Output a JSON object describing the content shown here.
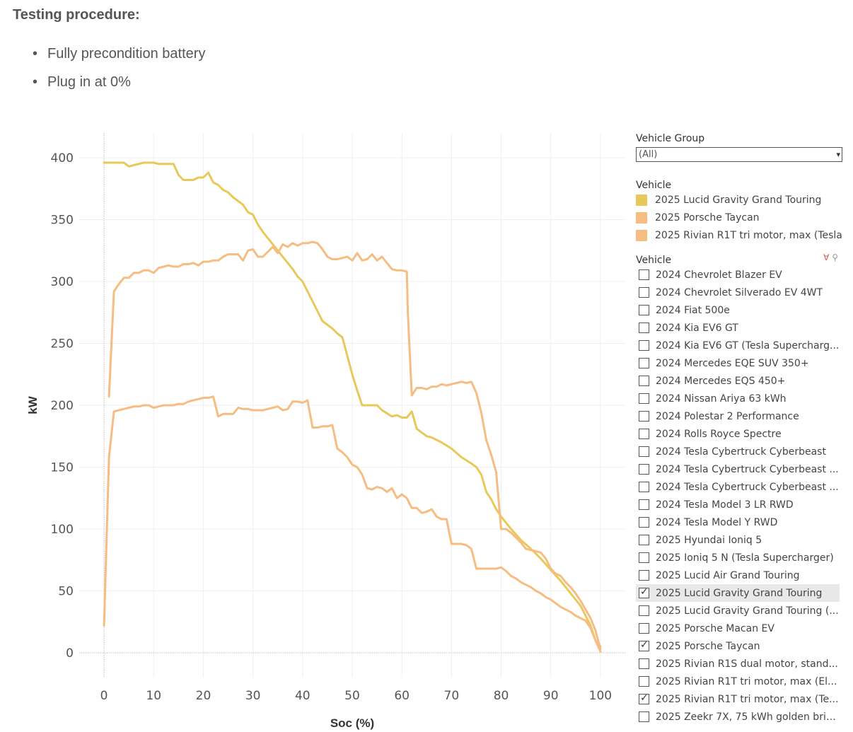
{
  "header": {
    "title": "Testing procedure:",
    "bullets": [
      "Fully precondition battery",
      "Plug in at 0%"
    ]
  },
  "chart_data": {
    "type": "line",
    "xlabel": "Soc (%)",
    "ylabel": "kW",
    "xlim": [
      -5,
      105
    ],
    "ylim": [
      -20,
      420
    ],
    "xticks": [
      0,
      10,
      20,
      30,
      40,
      50,
      60,
      70,
      80,
      90,
      100
    ],
    "yticks": [
      0,
      50,
      100,
      150,
      200,
      250,
      300,
      350,
      400
    ],
    "grid": true,
    "series": [
      {
        "name": "2025 Lucid Gravity Grand Touring",
        "color": "#e9c85a",
        "x": [
          0,
          3,
          4,
          5,
          6,
          8,
          10,
          11,
          12,
          14,
          15,
          16,
          18,
          19,
          20,
          21,
          22,
          23,
          24,
          25,
          26,
          28,
          29,
          30,
          31,
          32,
          34,
          36,
          38,
          39,
          40,
          41,
          42,
          44,
          46,
          47,
          48,
          50,
          51,
          52,
          53,
          55,
          56,
          58,
          59,
          60,
          61,
          62,
          63,
          65,
          66,
          68,
          70,
          72,
          74,
          75,
          76,
          77,
          78,
          79,
          80,
          82,
          84,
          86,
          88,
          90,
          92,
          94,
          96,
          98,
          99,
          100
        ],
        "values": [
          396,
          396,
          396,
          393,
          394,
          396,
          396,
          395,
          395,
          395,
          386,
          382,
          382,
          384,
          384,
          388,
          380,
          378,
          374,
          372,
          368,
          362,
          356,
          354,
          346,
          340,
          330,
          320,
          310,
          304,
          300,
          292,
          284,
          268,
          262,
          258,
          255,
          225,
          212,
          200,
          200,
          200,
          196,
          191,
          192,
          190,
          190,
          195,
          181,
          175,
          174,
          170,
          165,
          158,
          153,
          150,
          144,
          130,
          124,
          116,
          110,
          100,
          91,
          84,
          76,
          67,
          58,
          48,
          38,
          22,
          10,
          5
        ]
      },
      {
        "name": "2025 Porsche Taycan",
        "color": "#f6bd82",
        "x": [
          1,
          2,
          3,
          4,
          5,
          6,
          7,
          8,
          9,
          10,
          11,
          12,
          13,
          14,
          15,
          16,
          17,
          18,
          19,
          20,
          21,
          22,
          23,
          24,
          25,
          26,
          27,
          28,
          29,
          30,
          31,
          32,
          33,
          34,
          35,
          36,
          37,
          38,
          39,
          40,
          41,
          42,
          43,
          44,
          45,
          46,
          47,
          48,
          49,
          50,
          51,
          52,
          53,
          54,
          55,
          56,
          57,
          58,
          59,
          60,
          61,
          61.2,
          62,
          63,
          64,
          65,
          66,
          67,
          68,
          69,
          70,
          71,
          72,
          73,
          74,
          75,
          76,
          77,
          78,
          79,
          80,
          81,
          82,
          83,
          84,
          85,
          86,
          87,
          88,
          89,
          90,
          91,
          92,
          93,
          94,
          95,
          96,
          97,
          98,
          99,
          100
        ],
        "values": [
          207,
          292,
          298,
          303,
          303,
          307,
          307,
          309,
          309,
          307,
          311,
          312,
          313,
          312,
          312,
          314,
          314,
          315,
          313,
          316,
          316,
          317,
          317,
          320,
          322,
          322,
          322,
          317,
          325,
          326,
          320,
          320,
          324,
          328,
          323,
          330,
          328,
          331,
          329,
          331,
          331,
          332,
          331,
          326,
          320,
          318,
          318,
          319,
          320,
          317,
          323,
          317,
          318,
          322,
          317,
          320,
          315,
          310,
          309,
          309,
          308,
          275,
          208,
          214,
          214,
          213,
          215,
          215,
          217,
          216,
          217,
          218,
          219,
          218,
          219,
          210,
          194,
          172,
          160,
          146,
          100,
          100,
          97,
          93,
          89,
          84,
          83,
          82,
          81,
          76,
          68,
          64,
          62,
          57,
          53,
          48,
          42,
          35,
          28,
          18,
          3
        ]
      },
      {
        "name": "2025 Rivian R1T tri motor, max (Tesla",
        "color": "#f6bd82",
        "x": [
          0,
          1,
          2,
          3,
          4,
          5,
          6,
          7,
          8,
          9,
          10,
          11,
          12,
          13,
          14,
          15,
          16,
          17,
          18,
          19,
          20,
          21,
          22,
          23,
          24,
          25,
          26,
          27,
          28,
          29,
          30,
          31,
          32,
          33,
          34,
          35,
          36,
          37,
          38,
          39,
          40,
          41,
          42,
          43,
          44,
          45,
          46,
          47,
          48,
          49,
          50,
          51,
          52,
          53,
          54,
          55,
          56,
          57,
          58,
          59,
          60,
          61,
          62,
          63,
          64,
          65,
          66,
          67,
          68,
          69,
          70,
          71,
          72,
          73,
          74,
          75,
          76,
          77,
          78,
          79,
          80,
          81,
          82,
          83,
          84,
          85,
          86,
          87,
          88,
          89,
          90,
          91,
          92,
          93,
          94,
          95,
          96,
          97,
          98,
          99,
          100
        ],
        "values": [
          22,
          158,
          195,
          196,
          197,
          198,
          199,
          199,
          200,
          200,
          198,
          199,
          200,
          200,
          200,
          201,
          201,
          203,
          204,
          205,
          206,
          206,
          207,
          191,
          193,
          193,
          193,
          198,
          197,
          197,
          196,
          196,
          196,
          197,
          198,
          199,
          196,
          197,
          203,
          203,
          202,
          204,
          182,
          182,
          183,
          183,
          184,
          165,
          162,
          158,
          152,
          150,
          144,
          133,
          132,
          134,
          133,
          130,
          133,
          125,
          128,
          125,
          117,
          117,
          113,
          114,
          116,
          110,
          108,
          108,
          88,
          88,
          88,
          87,
          84,
          68,
          68,
          68,
          68,
          68,
          69,
          66,
          62,
          60,
          57,
          55,
          53,
          50,
          48,
          45,
          43,
          40,
          37,
          35,
          33,
          30,
          28,
          26,
          20,
          10,
          1
        ]
      }
    ]
  },
  "filters": {
    "vehicle_group": {
      "title": "Vehicle Group",
      "value": "(All)"
    },
    "legend": {
      "title": "Vehicle",
      "items": [
        {
          "label": "2025 Lucid Gravity Grand Touring",
          "color": "#e9c85a"
        },
        {
          "label": "2025 Porsche Taycan",
          "color": "#f6bd82"
        },
        {
          "label": "2025 Rivian R1T tri motor, max (Tesla",
          "color": "#f6bd82"
        }
      ]
    },
    "vehicle": {
      "title": "Vehicle",
      "items": [
        {
          "label": "2024 Chevrolet Blazer EV",
          "checked": false
        },
        {
          "label": "2024 Chevrolet Silverado EV 4WT",
          "checked": false
        },
        {
          "label": "2024 Fiat 500e",
          "checked": false
        },
        {
          "label": "2024 Kia EV6 GT",
          "checked": false
        },
        {
          "label": "2024 Kia EV6 GT (Tesla Supercharg...",
          "checked": false
        },
        {
          "label": "2024 Mercedes EQE SUV 350+",
          "checked": false
        },
        {
          "label": "2024 Mercedes EQS 450+",
          "checked": false
        },
        {
          "label": "2024 Nissan Ariya 63 kWh",
          "checked": false
        },
        {
          "label": "2024 Polestar 2 Performance",
          "checked": false
        },
        {
          "label": "2024 Rolls Royce Spectre",
          "checked": false
        },
        {
          "label": "2024 Tesla Cybertruck Cyberbeast",
          "checked": false
        },
        {
          "label": "2024 Tesla Cybertruck Cyberbeast ...",
          "checked": false
        },
        {
          "label": "2024 Tesla Cybertruck Cyberbeast ...",
          "checked": false
        },
        {
          "label": "2024 Tesla Model 3 LR RWD",
          "checked": false
        },
        {
          "label": "2024 Tesla Model Y RWD",
          "checked": false
        },
        {
          "label": "2025 Hyundai Ioniq 5",
          "checked": false
        },
        {
          "label": "2025 Ioniq 5 N (Tesla Supercharger)",
          "checked": false
        },
        {
          "label": "2025 Lucid Air Grand Touring",
          "checked": false
        },
        {
          "label": "2025 Lucid Gravity Grand Touring",
          "checked": true,
          "highlighted": true
        },
        {
          "label": "2025 Lucid Gravity Grand Touring (...",
          "checked": false
        },
        {
          "label": "2025 Porsche Macan EV",
          "checked": false
        },
        {
          "label": "2025 Porsche Taycan",
          "checked": true
        },
        {
          "label": "2025 Rivian R1S dual motor, stand...",
          "checked": false
        },
        {
          "label": "2025 Rivian R1T tri motor, max (El...",
          "checked": false
        },
        {
          "label": "2025 Rivian R1T tri motor, max (Te...",
          "checked": true
        },
        {
          "label": "2025 Zeekr 7X, 75 kWh golden bric...",
          "checked": false
        }
      ]
    }
  }
}
